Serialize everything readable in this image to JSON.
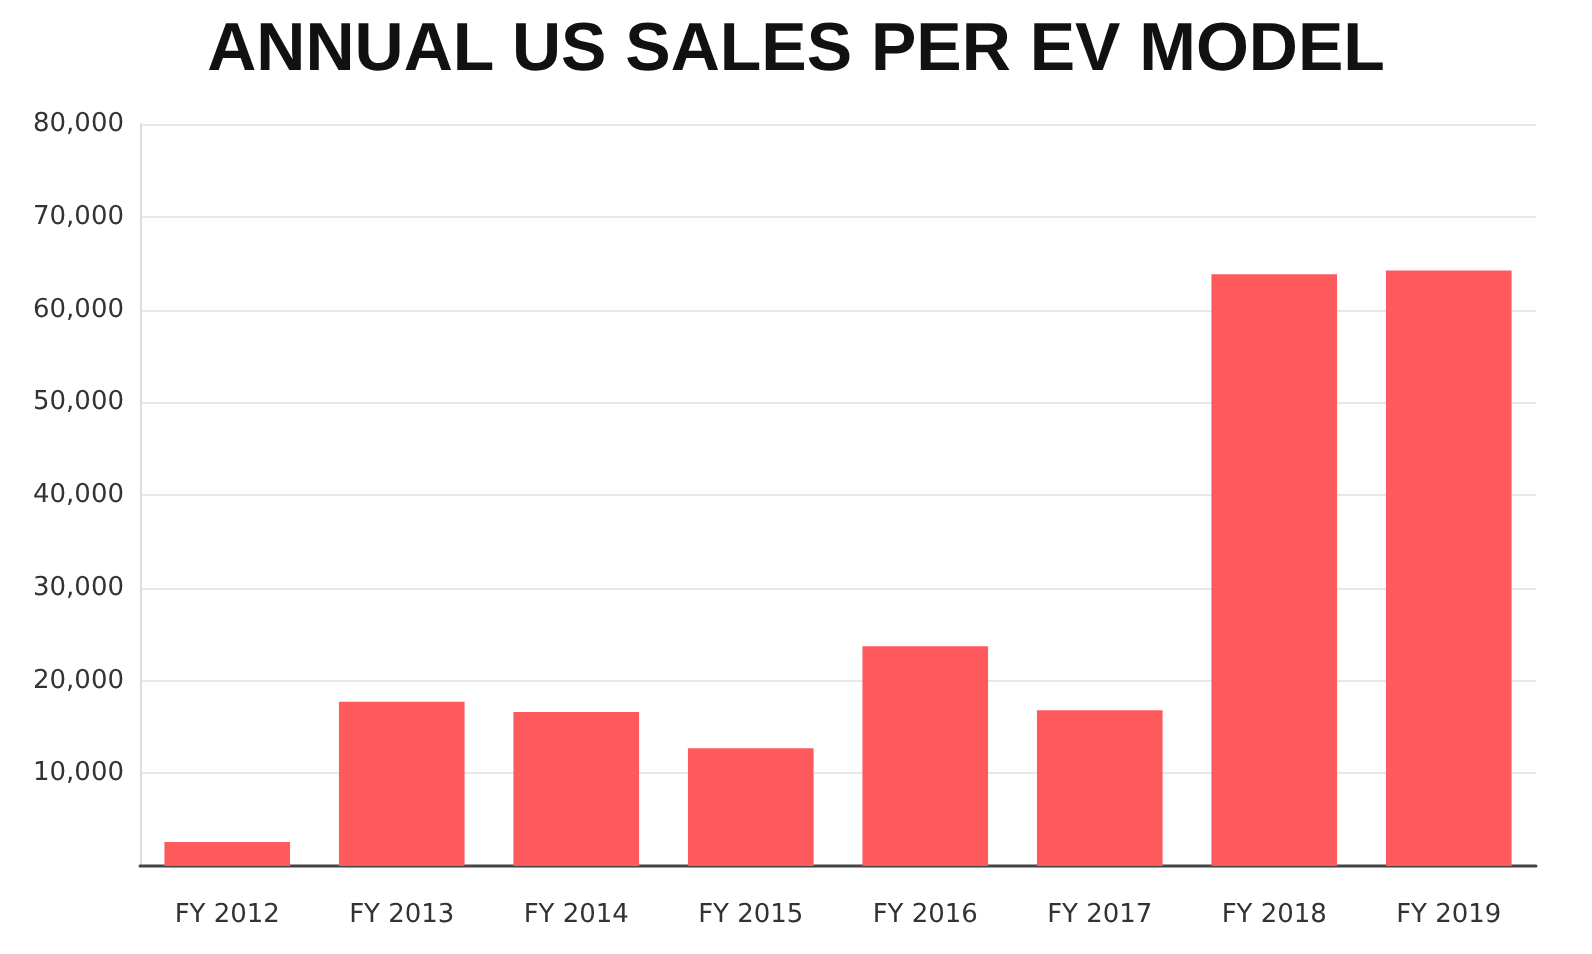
{
  "chart_data": {
    "type": "bar",
    "title": "ANNUAL US SALES PER EV MODEL",
    "categories": [
      "FY 2012",
      "FY 2013",
      "FY 2014",
      "FY 2015",
      "FY 2016",
      "FY 2017",
      "FY 2018",
      "FY 2019"
    ],
    "values": [
      2600,
      17700,
      16600,
      12700,
      23700,
      16800,
      63800,
      64200
    ],
    "color": "#fe5a5e",
    "ylim": [
      0,
      80000
    ],
    "yticks": [
      {
        "value": 10000,
        "label": "10,000"
      },
      {
        "value": 20000,
        "label": "20,000"
      },
      {
        "value": 30000,
        "label": "30,000"
      },
      {
        "value": 40000,
        "label": "40,000"
      },
      {
        "value": 50000,
        "label": "50,000"
      },
      {
        "value": 60000,
        "label": "60,000"
      },
      {
        "value": 70000,
        "label": "70,000"
      },
      {
        "value": 80000,
        "label": "80,000"
      }
    ],
    "grid": true
  }
}
